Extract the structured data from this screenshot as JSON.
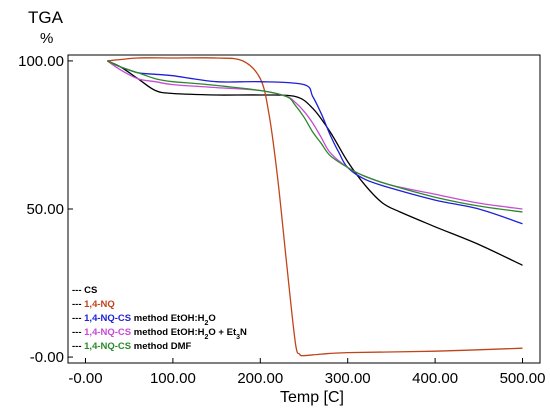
{
  "chart_data": {
    "type": "line",
    "title": "TGA",
    "ylabel": "%",
    "xlabel": "Temp [C]",
    "xlim": [
      -20,
      520
    ],
    "ylim": [
      -2,
      102
    ],
    "xticks": [
      0,
      100,
      200,
      300,
      400,
      500
    ],
    "xtick_labels": [
      "-0.00",
      "100.00",
      "200.00",
      "300.00",
      "400.00",
      "500.00"
    ],
    "yticks": [
      0,
      50,
      100
    ],
    "ytick_labels": [
      "-0.00",
      "50.00",
      "100.00"
    ],
    "grid": false,
    "legend_position": "bottom-left",
    "series": [
      {
        "name": "CS",
        "color": "#000000",
        "x": [
          25,
          40,
          60,
          80,
          100,
          150,
          200,
          240,
          260,
          280,
          300,
          320,
          340,
          360,
          400,
          450,
          500
        ],
        "y": [
          100,
          98,
          94,
          90,
          89,
          88.5,
          88.5,
          88,
          84,
          76,
          66,
          58,
          52,
          49,
          44,
          38,
          31
        ]
      },
      {
        "name": "1,4-NQ",
        "color": "#c0441a",
        "x": [
          25,
          60,
          100,
          150,
          180,
          200,
          210,
          220,
          230,
          240,
          245,
          250,
          270,
          300,
          400,
          500
        ],
        "y": [
          100,
          101,
          101,
          101,
          100,
          94,
          82,
          60,
          32,
          5,
          1,
          0.5,
          1,
          1.5,
          2,
          3
        ]
      },
      {
        "name": "1,4-NQ-CS method EtOH:H₂O",
        "color": "#1f1fd6",
        "x": [
          25,
          40,
          60,
          80,
          100,
          150,
          200,
          250,
          260,
          270,
          280,
          290,
          300,
          320,
          350,
          400,
          450,
          500
        ],
        "y": [
          100,
          98,
          96,
          95.5,
          95,
          93,
          93,
          92,
          88,
          82,
          75,
          69,
          64,
          60,
          57,
          53,
          50,
          45
        ]
      },
      {
        "name": "1,4-NQ-CS method EtOH:H₂O + Et₃N",
        "color": "#c84ad6",
        "x": [
          25,
          40,
          60,
          80,
          100,
          150,
          200,
          230,
          240,
          250,
          260,
          270,
          280,
          300,
          320,
          350,
          400,
          450,
          500
        ],
        "y": [
          100,
          97,
          94,
          93,
          92,
          91,
          90,
          88,
          86,
          83,
          79,
          74,
          69,
          64,
          61,
          58,
          55,
          52,
          50
        ]
      },
      {
        "name": "1,4-NQ-CS method DMF",
        "color": "#2a8a2a",
        "x": [
          25,
          40,
          60,
          80,
          100,
          140,
          200,
          230,
          240,
          250,
          260,
          270,
          280,
          300,
          320,
          350,
          400,
          450,
          500
        ],
        "y": [
          100,
          98,
          96,
          94,
          93,
          92,
          90,
          88,
          85,
          81,
          76,
          72,
          68,
          64,
          61,
          58,
          54,
          51,
          49
        ]
      }
    ]
  },
  "legend_rows": [
    {
      "marker": "---",
      "parts": [
        {
          "t": "CS",
          "c": "#000000"
        }
      ]
    },
    {
      "marker": "---",
      "parts": [
        {
          "t": "1,4-NQ",
          "c": "#c0441a"
        }
      ]
    },
    {
      "marker": "---",
      "parts": [
        {
          "t": "1,4-NQ-CS",
          "c": "#1f1fd6"
        },
        {
          "t": " method EtOH:H",
          "c": "#000000"
        },
        {
          "t": "2",
          "c": "#000000",
          "sub": true
        },
        {
          "t": "O",
          "c": "#000000"
        }
      ]
    },
    {
      "marker": "---",
      "parts": [
        {
          "t": "1,4-NQ-CS",
          "c": "#c84ad6"
        },
        {
          "t": " method EtOH:H",
          "c": "#000000"
        },
        {
          "t": "2",
          "c": "#000000",
          "sub": true
        },
        {
          "t": "O + Et",
          "c": "#000000"
        },
        {
          "t": "3",
          "c": "#000000",
          "sub": true
        },
        {
          "t": "N",
          "c": "#000000"
        }
      ]
    },
    {
      "marker": "---",
      "parts": [
        {
          "t": "1,4-NQ-CS",
          "c": "#2a8a2a"
        },
        {
          "t": " method DMF",
          "c": "#000000"
        }
      ]
    }
  ]
}
